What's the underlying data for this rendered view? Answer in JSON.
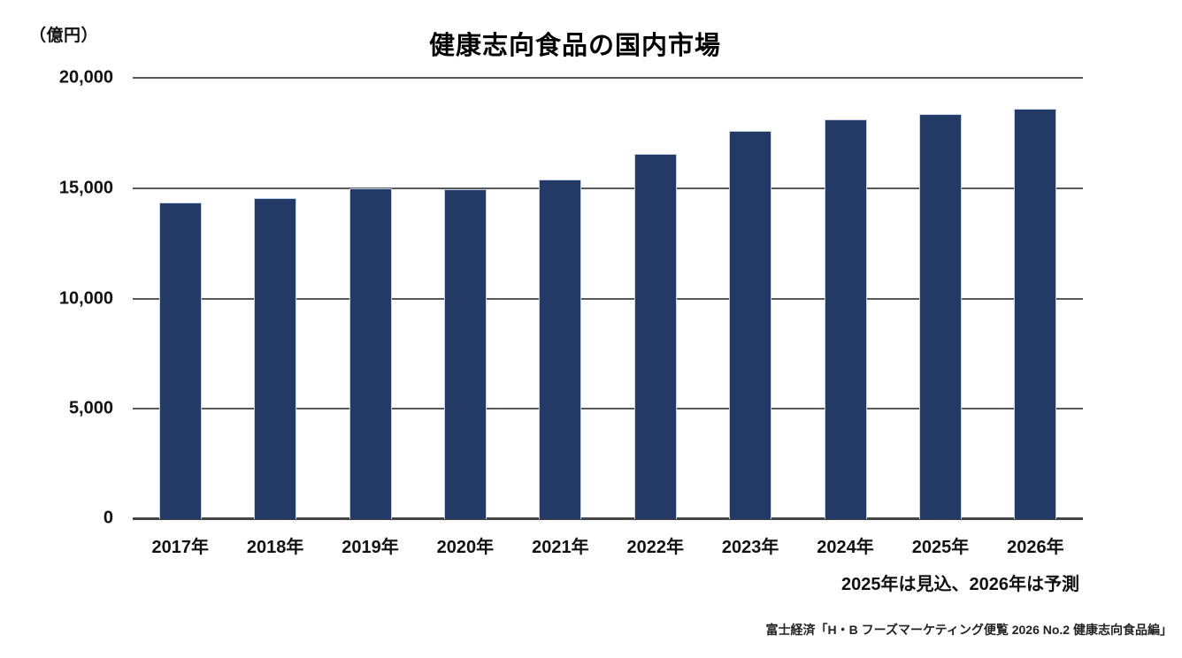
{
  "chart_data": {
    "type": "bar",
    "title": "健康志向食品の国内市場",
    "unit_label": "（億円）",
    "categories": [
      "2017年",
      "2018年",
      "2019年",
      "2020年",
      "2021年",
      "2022年",
      "2023年",
      "2024年",
      "2025年",
      "2026年"
    ],
    "values": [
      14350,
      14550,
      15000,
      14950,
      15400,
      16550,
      17600,
      18100,
      18350,
      18600
    ],
    "ylim": [
      0,
      20000
    ],
    "ytick_interval": 5000,
    "ytick_labels": [
      "20,000",
      "15,000",
      "10,000",
      "5,000",
      "0"
    ],
    "grid": true,
    "legend": "none",
    "bar_color": "#233a66",
    "bar_border_color": "#c4d0e6",
    "gridline_color": "#595959",
    "note": "2025年は見込、2026年は予測",
    "source": "富士経済「H・B フーズマーケティング便覧 2026 No.2 健康志向食品編」"
  }
}
